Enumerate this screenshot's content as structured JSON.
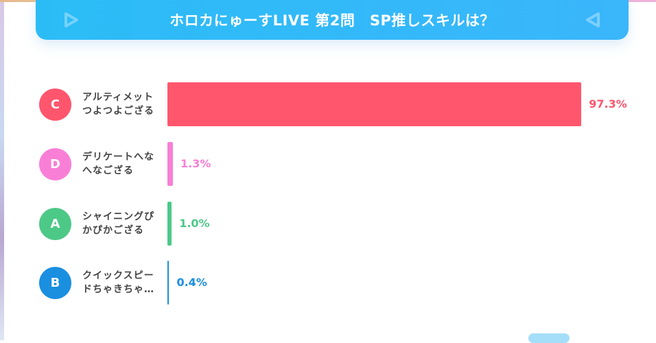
{
  "header": {
    "title": "ホロカにゅーすLIVE 第2問　SP推しスキルは？"
  },
  "chart_data": {
    "type": "bar",
    "orientation": "horizontal",
    "title": "ホロカにゅーすLIVE 第2問　SP推しスキルは？",
    "xlim": [
      0,
      100
    ],
    "unit": "%",
    "categories": [
      {
        "letter": "C",
        "line1": "アルティメット",
        "line2": "つよつよござる",
        "value": 97.3,
        "label": "97.3%",
        "color": "#ff566e"
      },
      {
        "letter": "D",
        "line1": "デリケートへな",
        "line2": "へなござる",
        "value": 1.3,
        "label": "1.3%",
        "color": "#f97fd6"
      },
      {
        "letter": "A",
        "line1": "シャイニングぴ",
        "line2": "かぴかござる",
        "value": 1.0,
        "label": "1.0%",
        "color": "#4cc987"
      },
      {
        "letter": "B",
        "line1": "クイックスピー",
        "line2": "ドちゃきちゃ…",
        "value": 0.4,
        "label": "0.4%",
        "color": "#1a8fe0"
      }
    ]
  }
}
